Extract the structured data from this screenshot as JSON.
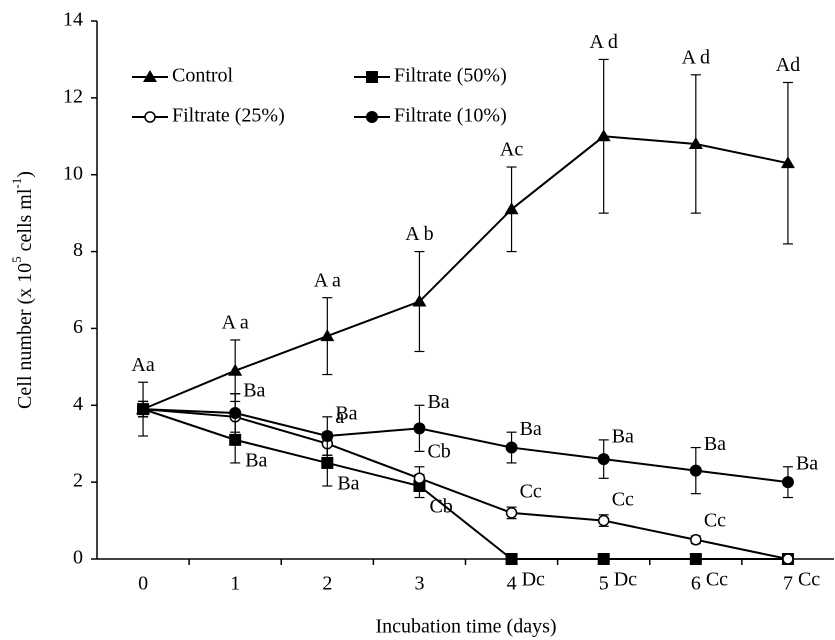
{
  "chart_data": {
    "type": "line",
    "xlabel": "Incubation time (days)",
    "ylabel_parts": [
      "Cell number (x 10",
      "5",
      " cells ml",
      "-1",
      ")"
    ],
    "categories": [
      "0",
      "1",
      "2",
      "3",
      "4",
      "5",
      "6",
      "7"
    ],
    "ylim": [
      0,
      14
    ],
    "yticks": [
      0,
      2,
      4,
      6,
      8,
      10,
      12,
      14
    ],
    "legend": "upper left",
    "series": [
      {
        "name": "Control",
        "color": "#000000",
        "marker": "triangle",
        "values": [
          3.9,
          4.9,
          5.8,
          6.7,
          9.1,
          11.0,
          10.8,
          10.3
        ],
        "errors": [
          0.7,
          0.8,
          1.0,
          1.3,
          1.1,
          2.0,
          1.8,
          2.1
        ],
        "letters": [
          "Aa",
          "A a",
          "A a",
          "A b",
          "Ac",
          "A d",
          "A d",
          "Ad"
        ]
      },
      {
        "name": "Filtrate (50%)",
        "color": "#000000",
        "marker": "square",
        "values": [
          3.9,
          3.1,
          2.5,
          1.9,
          0,
          0,
          0,
          0
        ],
        "errors": [
          0.2,
          0.6,
          0.6,
          0.3,
          0,
          0,
          0,
          0
        ],
        "letters": [
          null,
          "Ba",
          "Ba",
          "Cb",
          "Dc",
          "Dc",
          "Cc",
          "Cc"
        ]
      },
      {
        "name": "Filtrate (25%)",
        "color": "#000000",
        "marker": "open-circle",
        "values": [
          3.9,
          3.7,
          3.0,
          2.1,
          1.2,
          1.0,
          0.5,
          0
        ],
        "errors": [
          0.2,
          0.6,
          0.3,
          0.3,
          0.15,
          0.15,
          0.1,
          0
        ],
        "letters": [
          null,
          null,
          "a",
          "Cb",
          "Cc",
          "Cc",
          "Cc",
          null
        ]
      },
      {
        "name": "Filtrate (10%)",
        "color": "#000000",
        "marker": "filled-circle",
        "values": [
          3.9,
          3.8,
          3.2,
          3.4,
          2.9,
          2.6,
          2.3,
          2.0
        ],
        "errors": [
          0.2,
          0.5,
          0.5,
          0.6,
          0.4,
          0.5,
          0.6,
          0.4
        ],
        "letters": [
          null,
          "Ba",
          "Ba",
          "Ba",
          "Ba",
          "Ba",
          "Ba",
          "Ba"
        ]
      }
    ]
  }
}
